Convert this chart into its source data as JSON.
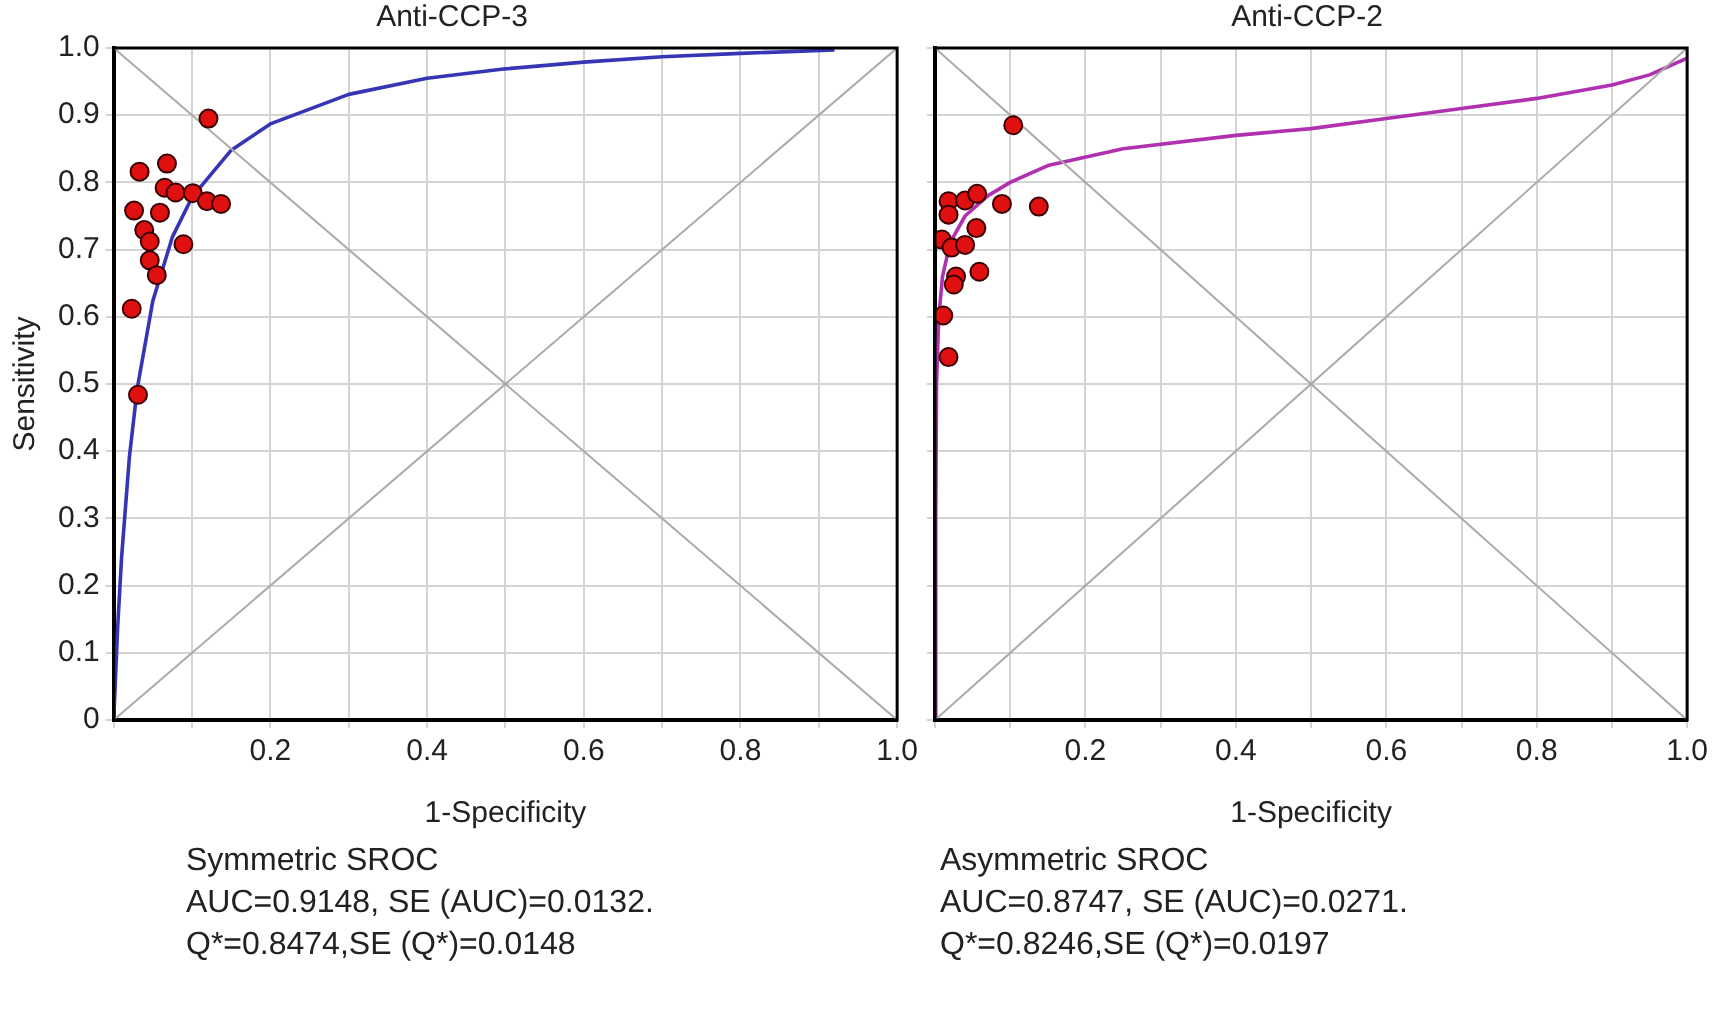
{
  "chart_data": [
    {
      "type": "scatter",
      "title": "Anti-CCP-3",
      "xlabel": "1-Specificity",
      "ylabel": "Sensitivity",
      "xlim": [
        0,
        1
      ],
      "ylim": [
        0,
        1
      ],
      "xticks": [
        {
          "value": 0,
          "label": null
        },
        {
          "value": 0.1,
          "label": null
        },
        0.2,
        {
          "value": 0.3,
          "label": null
        },
        0.4,
        {
          "value": 0.5,
          "label": null
        },
        0.6,
        {
          "value": 0.7,
          "label": null
        },
        0.8,
        {
          "value": 0.9,
          "label": null
        },
        {
          "value": 1,
          "label": "1.0"
        }
      ],
      "yticks": [
        0,
        0.1,
        0.2,
        0.3,
        0.4,
        0.5,
        0.6,
        0.7,
        0.8,
        0.9,
        {
          "value": 1,
          "label": "1.0"
        }
      ],
      "grid": true,
      "legend": false,
      "marker": "circle",
      "series": [
        {
          "type": "line",
          "color": "#aaaaaa",
          "marker": "none",
          "x": [
            0,
            1
          ],
          "values": [
            0,
            1
          ]
        },
        {
          "type": "line",
          "color": "#aaaaaa",
          "marker": "none",
          "x": [
            0,
            1
          ],
          "values": [
            1,
            0
          ]
        },
        {
          "type": "line",
          "color": "#3535b5",
          "marker": "none",
          "x": [
            0,
            0.005,
            0.01,
            0.02,
            0.03,
            0.05,
            0.075,
            0.1,
            0.15,
            0.2,
            0.3,
            0.4,
            0.5,
            0.6,
            0.7,
            0.8,
            0.92
          ],
          "values": [
            0,
            0.137,
            0.241,
            0.391,
            0.493,
            0.624,
            0.719,
            0.778,
            0.848,
            0.887,
            0.931,
            0.955,
            0.969,
            0.979,
            0.987,
            0.992,
            0.997
          ]
        },
        {
          "type": "scatter",
          "color": "#e01010",
          "x": [
            0.121,
            0.033,
            0.068,
            0.065,
            0.079,
            0.101,
            0.119,
            0.137,
            0.026,
            0.059,
            0.039,
            0.046,
            0.089,
            0.046,
            0.055,
            0.023,
            0.031
          ],
          "values": [
            0.895,
            0.816,
            0.828,
            0.792,
            0.785,
            0.784,
            0.772,
            0.768,
            0.758,
            0.755,
            0.729,
            0.712,
            0.708,
            0.684,
            0.662,
            0.612,
            0.484
          ]
        }
      ],
      "annotations": [
        "Symmetric SROC",
        "AUC=0.9148, SE (AUC)=0.0132.",
        "Q*=0.8474,SE (Q*)=0.0148"
      ]
    },
    {
      "type": "scatter",
      "title": "Anti-CCP-2",
      "xlabel": "1-Specificity",
      "xlim": [
        0,
        1
      ],
      "ylim": [
        0,
        1
      ],
      "xticks": [
        {
          "value": 0,
          "label": null
        },
        {
          "value": 0.1,
          "label": null
        },
        0.2,
        {
          "value": 0.3,
          "label": null
        },
        0.4,
        {
          "value": 0.5,
          "label": null
        },
        0.6,
        {
          "value": 0.7,
          "label": null
        },
        0.8,
        {
          "value": 0.9,
          "label": null
        },
        {
          "value": 1,
          "label": "1.0"
        }
      ],
      "yticks": [
        {
          "value": 0,
          "label": null
        },
        {
          "value": 0.1,
          "label": null
        },
        {
          "value": 0.2,
          "label": null
        },
        {
          "value": 0.3,
          "label": null
        },
        {
          "value": 0.4,
          "label": null
        },
        {
          "value": 0.5,
          "label": null
        },
        {
          "value": 0.6,
          "label": null
        },
        {
          "value": 0.7,
          "label": null
        },
        {
          "value": 0.8,
          "label": null
        },
        {
          "value": 0.9,
          "label": null
        },
        {
          "value": 1,
          "label": null
        }
      ],
      "tick_labels": "x",
      "grid": true,
      "legend": false,
      "marker": "circle",
      "series": [
        {
          "type": "line",
          "color": "#aaaaaa",
          "marker": "none",
          "x": [
            0,
            1
          ],
          "values": [
            0,
            1
          ]
        },
        {
          "type": "line",
          "color": "#aaaaaa",
          "marker": "none",
          "x": [
            0,
            1
          ],
          "values": [
            1,
            0
          ]
        },
        {
          "type": "line",
          "color": "#b030b0",
          "marker": "none",
          "x": [
            0,
            0.001,
            0.002,
            0.005,
            0.01,
            0.02,
            0.04,
            0.07,
            0.1,
            0.15,
            0.25,
            0.4,
            0.5,
            0.6,
            0.7,
            0.8,
            0.9,
            0.95,
            1
          ],
          "values": [
            0,
            0.3,
            0.5,
            0.6,
            0.66,
            0.71,
            0.75,
            0.78,
            0.8,
            0.825,
            0.85,
            0.87,
            0.88,
            0.895,
            0.91,
            0.925,
            0.945,
            0.96,
            0.985
          ]
        },
        {
          "type": "scatter",
          "color": "#e01010",
          "x": [
            0.104,
            0.018,
            0.04,
            0.056,
            0.089,
            0.138,
            0.018,
            0.009,
            0.022,
            0.04,
            0.055,
            0.028,
            0.025,
            0.059,
            0.011,
            0.018
          ],
          "values": [
            0.885,
            0.772,
            0.773,
            0.783,
            0.768,
            0.764,
            0.752,
            0.715,
            0.703,
            0.707,
            0.732,
            0.66,
            0.648,
            0.667,
            0.602,
            0.54
          ]
        }
      ],
      "annotations": [
        "Asymmetric SROC",
        "AUC=0.8747, SE (AUC)=0.0271.",
        "Q*=0.8246,SE (Q*)=0.0197"
      ]
    }
  ]
}
